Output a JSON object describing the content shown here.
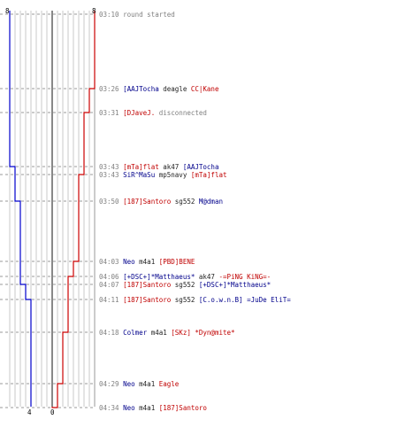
{
  "score_start": {
    "left": "8",
    "right": "8"
  },
  "score_end": {
    "left": "4",
    "right": "0"
  },
  "colors": {
    "blue": "#0000cc",
    "red": "#cc0000",
    "grid": "#c8c8c8",
    "center": "#606060"
  },
  "events": [
    {
      "time": "03:10",
      "parts": [
        {
          "text": "round started",
          "c": "t"
        }
      ]
    },
    {
      "time": "03:26",
      "parts": [
        {
          "text": "[AAJTocha",
          "c": "blue"
        },
        {
          "text": " deagle ",
          "c": "dark"
        },
        {
          "text": "CC|Kane",
          "c": "red"
        }
      ]
    },
    {
      "time": "03:31",
      "parts": [
        {
          "text": "[DJaveJ.",
          "c": "red"
        },
        {
          "text": " disconnected",
          "c": "t"
        }
      ]
    },
    {
      "time": "03:43",
      "parts": [
        {
          "text": "[mTa]flat",
          "c": "red"
        },
        {
          "text": " ak47 ",
          "c": "dark"
        },
        {
          "text": "[AAJTocha",
          "c": "blue"
        }
      ]
    },
    {
      "time": "03:43",
      "parts": [
        {
          "text": "SiR^MaSu",
          "c": "blue"
        },
        {
          "text": " mp5navy ",
          "c": "dark"
        },
        {
          "text": "[mTa]flat",
          "c": "red"
        }
      ]
    },
    {
      "time": "03:50",
      "parts": [
        {
          "text": "[187]Santoro",
          "c": "red"
        },
        {
          "text": " sg552 ",
          "c": "dark"
        },
        {
          "text": "M@dman",
          "c": "blue"
        }
      ]
    },
    {
      "time": "04:03",
      "parts": [
        {
          "text": "Neo",
          "c": "blue"
        },
        {
          "text": " m4a1 ",
          "c": "dark"
        },
        {
          "text": "[PBD]BENE",
          "c": "red"
        }
      ]
    },
    {
      "time": "04:06",
      "parts": [
        {
          "text": "[+DSC+]*Matthaeus*",
          "c": "blue"
        },
        {
          "text": " ak47 ",
          "c": "dark"
        },
        {
          "text": "-=PiNG KiNG=-",
          "c": "red"
        }
      ]
    },
    {
      "time": "04:07",
      "parts": [
        {
          "text": "[187]Santoro",
          "c": "red"
        },
        {
          "text": " sg552 ",
          "c": "dark"
        },
        {
          "text": "[+DSC+]*Matthaeus*",
          "c": "blue"
        }
      ]
    },
    {
      "time": "04:11",
      "parts": [
        {
          "text": "[187]Santoro",
          "c": "red"
        },
        {
          "text": " sg552 ",
          "c": "dark"
        },
        {
          "text": "[C.o.w.n.B] =JuDe EliT=",
          "c": "blue"
        }
      ]
    },
    {
      "time": "04:18",
      "parts": [
        {
          "text": "Colmer",
          "c": "blue"
        },
        {
          "text": " m4a1 ",
          "c": "dark"
        },
        {
          "text": "[SKz]",
          "c": "red"
        },
        {
          "text": " ",
          "c": "dark"
        },
        {
          "text": "*Dyn@mite*",
          "c": "red"
        }
      ]
    },
    {
      "time": "04:29",
      "parts": [
        {
          "text": "Neo",
          "c": "blue"
        },
        {
          "text": " m4a1 ",
          "c": "dark"
        },
        {
          "text": "Eagle",
          "c": "red"
        }
      ]
    },
    {
      "time": "04:34",
      "parts": [
        {
          "text": "Neo",
          "c": "blue"
        },
        {
          "text": " m4a1 ",
          "c": "dark"
        },
        {
          "text": "[187]Santoro",
          "c": "red"
        }
      ]
    }
  ]
}
